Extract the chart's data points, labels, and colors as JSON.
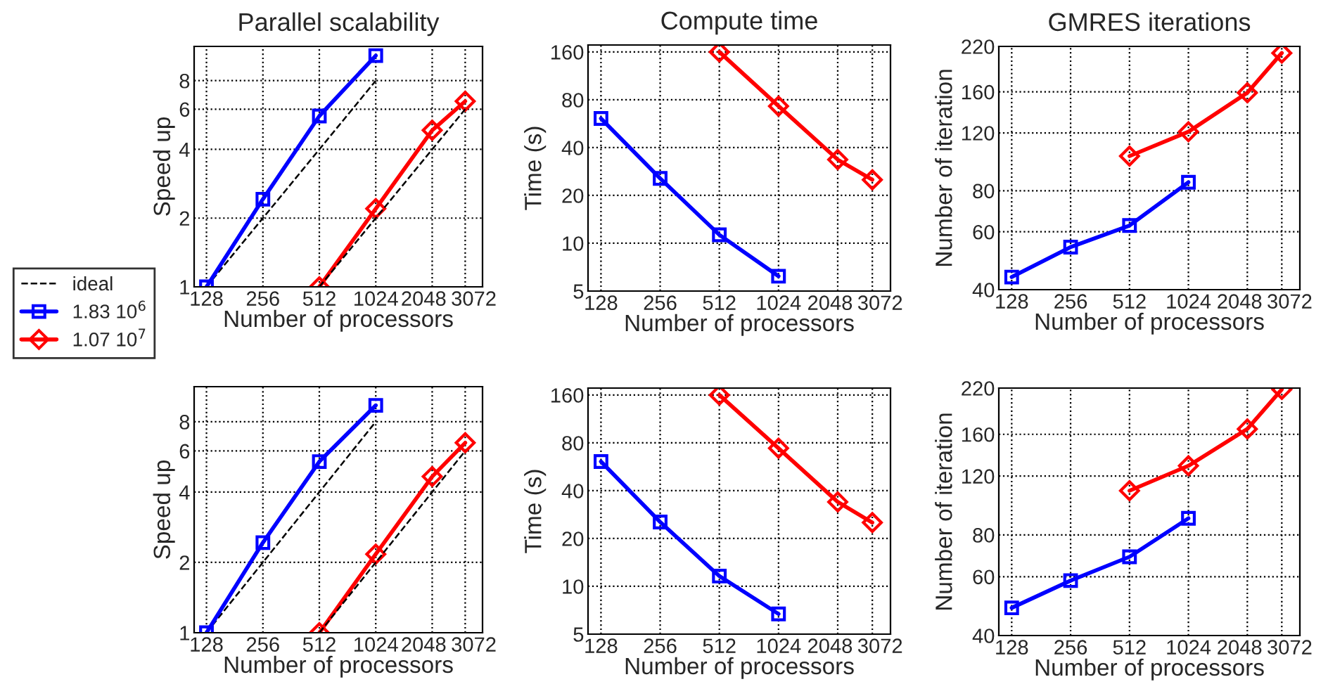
{
  "chart_data": [
    {
      "type": "line",
      "title": "Parallel scalability",
      "xlabel": "Number of processors",
      "ylabel": "Speed up",
      "log": "xy",
      "grid": true,
      "legend": "left",
      "xlim": [
        110,
        3800
      ],
      "xticks": [
        128,
        256,
        512,
        1024,
        2048,
        3072
      ],
      "ylim": [
        1,
        11.3
      ],
      "yticks": [
        1,
        2,
        4,
        6,
        8
      ],
      "series": [
        {
          "name": "ideal",
          "color": "#000000",
          "line_style": "dashed",
          "marker": "none",
          "x": [
            128,
            1024
          ],
          "values": [
            1,
            8
          ]
        },
        {
          "name": "1.83 10$^{6}$",
          "color": "#0000ff",
          "line_style": "solid",
          "marker": "square",
          "x": [
            128,
            256,
            512,
            1024
          ],
          "values": [
            1,
            2.42,
            5.6,
            10.3
          ]
        },
        {
          "name": "1.07 10$^{7}$",
          "color": "#ff0000",
          "line_style": "solid",
          "marker": "diamond",
          "x": [
            512,
            1024,
            2048,
            3072
          ],
          "values": [
            1,
            2.2,
            4.85,
            6.5
          ]
        },
        {
          "color": "#000000",
          "line_style": "dashed",
          "marker": "none",
          "x": [
            512,
            3072
          ],
          "values": [
            1,
            6
          ]
        }
      ]
    },
    {
      "type": "line",
      "title": "Compute time",
      "xlabel": "Number of processors",
      "ylabel": "Time (s)",
      "log": "xy",
      "grid": true,
      "xlim": [
        110,
        3800
      ],
      "xticks": [
        128,
        256,
        512,
        1024,
        2048,
        3072
      ],
      "ylim": [
        5,
        177
      ],
      "yticks": [
        5,
        10,
        20,
        40,
        80,
        160
      ],
      "series": [
        {
          "color": "#0000ff",
          "line_style": "solid",
          "marker": "square",
          "x": [
            128,
            256,
            512,
            1024
          ],
          "values": [
            61,
            25.6,
            11.3,
            6.2
          ]
        },
        {
          "color": "#ff0000",
          "line_style": "solid",
          "marker": "diamond",
          "x": [
            512,
            1024,
            2048,
            3072
          ],
          "values": [
            160,
            73,
            33.6,
            25.1
          ]
        }
      ]
    },
    {
      "type": "line",
      "title": "GMRES iterations",
      "xlabel": "Number of processors",
      "ylabel": "Number of iteration",
      "log": "xy",
      "grid": true,
      "xlim": [
        110,
        3800
      ],
      "xticks": [
        128,
        256,
        512,
        1024,
        2048,
        3072
      ],
      "ylim": [
        40,
        220
      ],
      "yticks": [
        40,
        60,
        80,
        120,
        160,
        220
      ],
      "series": [
        {
          "color": "#0000ff",
          "line_style": "solid",
          "marker": "square",
          "x": [
            128,
            256,
            512,
            1024
          ],
          "values": [
            43.7,
            53.9,
            62.7,
            84.9
          ]
        },
        {
          "color": "#ff0000",
          "line_style": "solid",
          "marker": "diamond",
          "x": [
            512,
            1024,
            2048,
            3072
          ],
          "values": [
            102,
            121,
            159,
            210
          ]
        }
      ]
    },
    {
      "type": "line",
      "xlabel": "Number of processors",
      "ylabel": "Speed up",
      "log": "xy",
      "grid": true,
      "xlim": [
        110,
        3800
      ],
      "xticks": [
        128,
        256,
        512,
        1024,
        2048,
        3072
      ],
      "ylim": [
        1,
        11.3
      ],
      "yticks": [
        1,
        2,
        4,
        6,
        8
      ],
      "series": [
        {
          "color": "#000000",
          "line_style": "dashed",
          "marker": "none",
          "x": [
            128,
            1024
          ],
          "values": [
            1,
            8
          ]
        },
        {
          "color": "#0000ff",
          "line_style": "solid",
          "marker": "square",
          "x": [
            128,
            256,
            512,
            1024
          ],
          "values": [
            1,
            2.43,
            5.4,
            9.4
          ]
        },
        {
          "color": "#ff0000",
          "line_style": "solid",
          "marker": "diamond",
          "x": [
            512,
            1024,
            2048,
            3072
          ],
          "values": [
            1,
            2.17,
            4.66,
            6.5
          ]
        },
        {
          "color": "#000000",
          "line_style": "dashed",
          "marker": "none",
          "x": [
            512,
            3072
          ],
          "values": [
            1,
            6
          ]
        }
      ]
    },
    {
      "type": "line",
      "xlabel": "Number of processors",
      "ylabel": "Time (s)",
      "log": "xy",
      "grid": true,
      "xlim": [
        110,
        3800
      ],
      "xticks": [
        128,
        256,
        512,
        1024,
        2048,
        3072
      ],
      "ylim": [
        5,
        177
      ],
      "yticks": [
        5,
        10,
        20,
        40,
        80,
        160
      ],
      "series": [
        {
          "color": "#0000ff",
          "line_style": "solid",
          "marker": "square",
          "x": [
            128,
            256,
            512,
            1024
          ],
          "values": [
            61,
            25.4,
            11.6,
            6.7
          ]
        },
        {
          "color": "#ff0000",
          "line_style": "solid",
          "marker": "diamond",
          "x": [
            512,
            1024,
            2048,
            3072
          ],
          "values": [
            160,
            74,
            34,
            25.2
          ]
        }
      ]
    },
    {
      "type": "line",
      "xlabel": "Number of processors",
      "ylabel": "Number of iteration",
      "log": "xy",
      "grid": true,
      "xlim": [
        110,
        3800
      ],
      "xticks": [
        128,
        256,
        512,
        1024,
        2048,
        3072
      ],
      "ylim": [
        40,
        220
      ],
      "yticks": [
        40,
        60,
        80,
        120,
        160,
        220
      ],
      "series": [
        {
          "color": "#0000ff",
          "line_style": "solid",
          "marker": "square",
          "x": [
            128,
            256,
            512,
            1024
          ],
          "values": [
            48.4,
            58.4,
            68.8,
            89.7
          ]
        },
        {
          "color": "#ff0000",
          "line_style": "solid",
          "marker": "diamond",
          "x": [
            512,
            1024,
            2048,
            3072
          ],
          "values": [
            108.5,
            128.8,
            166,
            218
          ]
        }
      ]
    }
  ]
}
